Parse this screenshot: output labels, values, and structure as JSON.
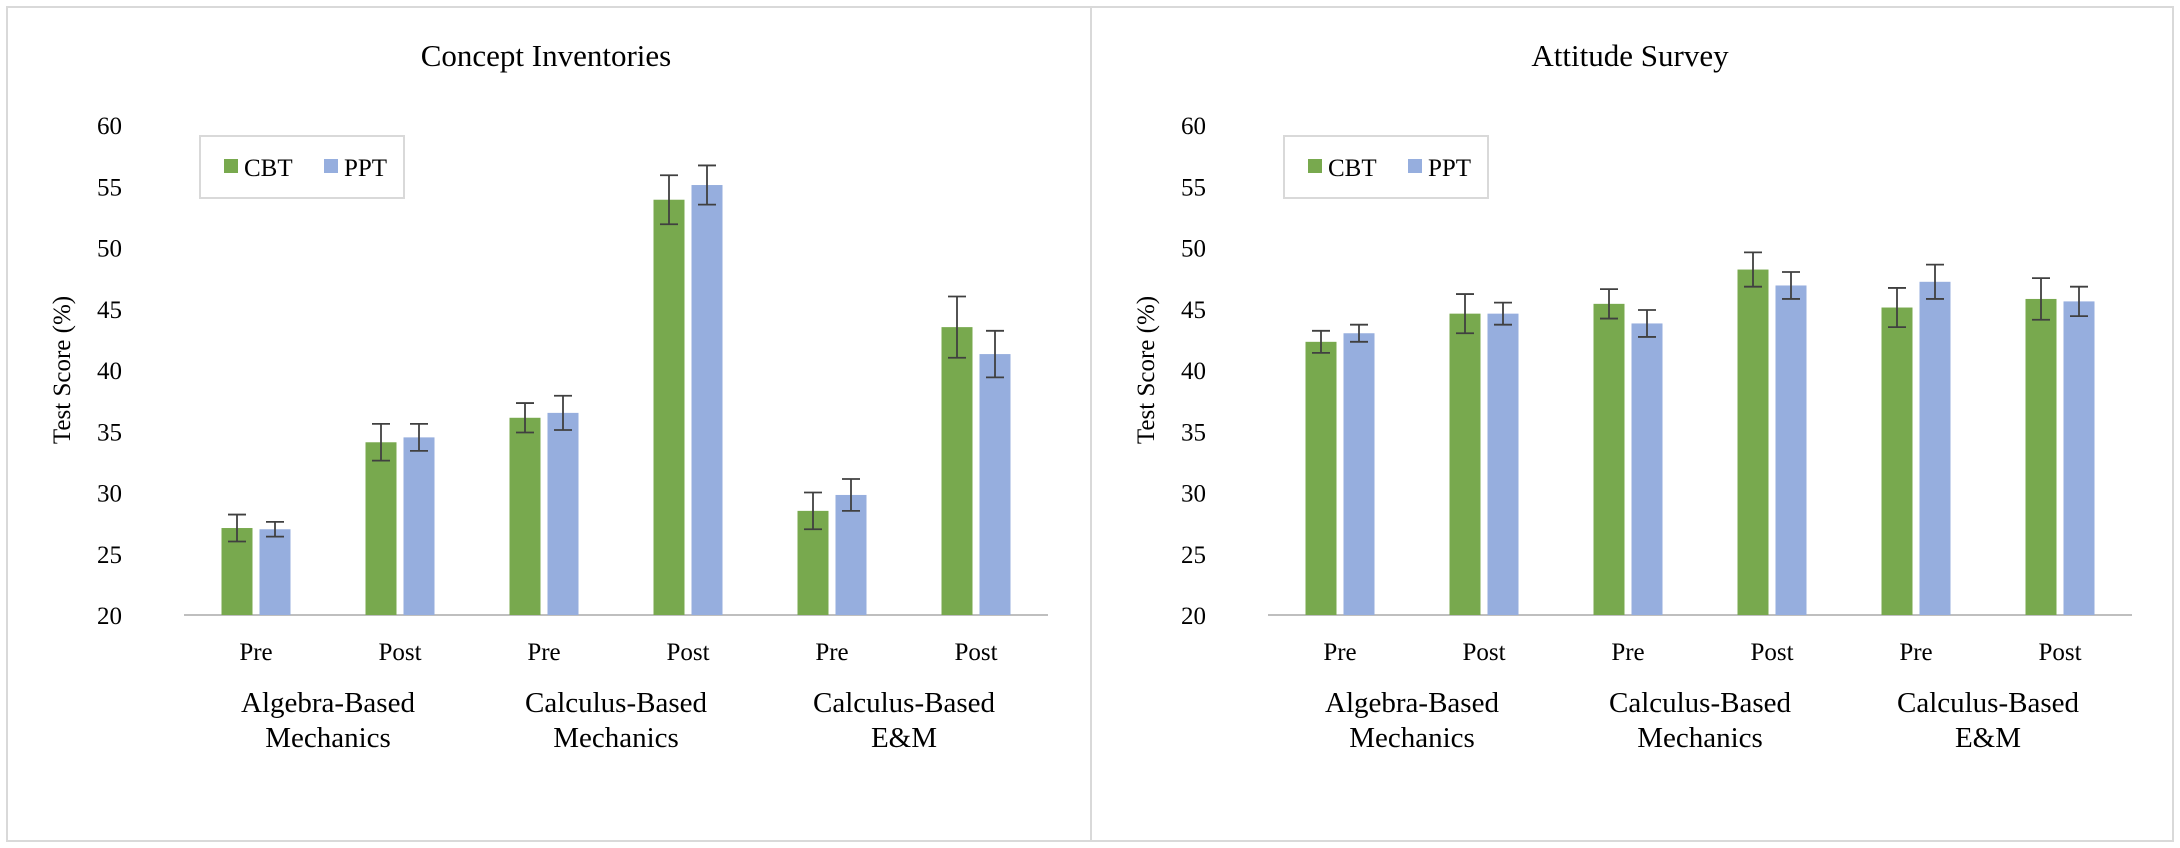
{
  "colors": {
    "cbt": "#78a94e",
    "ppt": "#96aede",
    "axis": "#bfbfbf",
    "error": "#404040"
  },
  "chart_data": [
    {
      "type": "bar",
      "title": "Concept Inventories",
      "ylabel": "Test Score (%)",
      "xlabel": "",
      "ylim": [
        20,
        60
      ],
      "yticks": [
        "20",
        "25",
        "30",
        "35",
        "40",
        "45",
        "50",
        "55",
        "60"
      ],
      "groups": [
        {
          "label": [
            "Algebra-Based",
            "Mechanics"
          ],
          "categories": [
            "Pre",
            "Post"
          ]
        },
        {
          "label": [
            "Calculus-Based",
            "Mechanics"
          ],
          "categories": [
            "Pre",
            "Post"
          ]
        },
        {
          "label": [
            "Calculus-Based",
            "E&M"
          ],
          "categories": [
            "Pre",
            "Post"
          ]
        }
      ],
      "legend": [
        "CBT",
        "PPT"
      ],
      "series": [
        {
          "name": "CBT",
          "values": [
            27.1,
            34.1,
            36.1,
            53.9,
            28.5,
            43.5
          ],
          "errors": [
            1.1,
            1.5,
            1.2,
            2.0,
            1.5,
            2.5
          ]
        },
        {
          "name": "PPT",
          "values": [
            27.0,
            34.5,
            36.5,
            55.1,
            29.8,
            41.3
          ],
          "errors": [
            0.6,
            1.1,
            1.4,
            1.6,
            1.3,
            1.9
          ]
        }
      ]
    },
    {
      "type": "bar",
      "title": "Attitude Survey",
      "ylabel": "Test Score (%)",
      "xlabel": "",
      "ylim": [
        20,
        60
      ],
      "yticks": [
        "20",
        "25",
        "30",
        "35",
        "40",
        "45",
        "50",
        "55",
        "60"
      ],
      "groups": [
        {
          "label": [
            "Algebra-Based",
            "Mechanics"
          ],
          "categories": [
            "Pre",
            "Post"
          ]
        },
        {
          "label": [
            "Calculus-Based",
            "Mechanics"
          ],
          "categories": [
            "Pre",
            "Post"
          ]
        },
        {
          "label": [
            "Calculus-Based",
            "E&M"
          ],
          "categories": [
            "Pre",
            "Post"
          ]
        }
      ],
      "legend": [
        "CBT",
        "PPT"
      ],
      "series": [
        {
          "name": "CBT",
          "values": [
            42.3,
            44.6,
            45.4,
            48.2,
            45.1,
            45.8
          ],
          "errors": [
            0.9,
            1.6,
            1.2,
            1.4,
            1.6,
            1.7
          ]
        },
        {
          "name": "PPT",
          "values": [
            43.0,
            44.6,
            43.8,
            46.9,
            47.2,
            45.6
          ],
          "errors": [
            0.7,
            0.9,
            1.1,
            1.1,
            1.4,
            1.2
          ]
        }
      ]
    }
  ]
}
